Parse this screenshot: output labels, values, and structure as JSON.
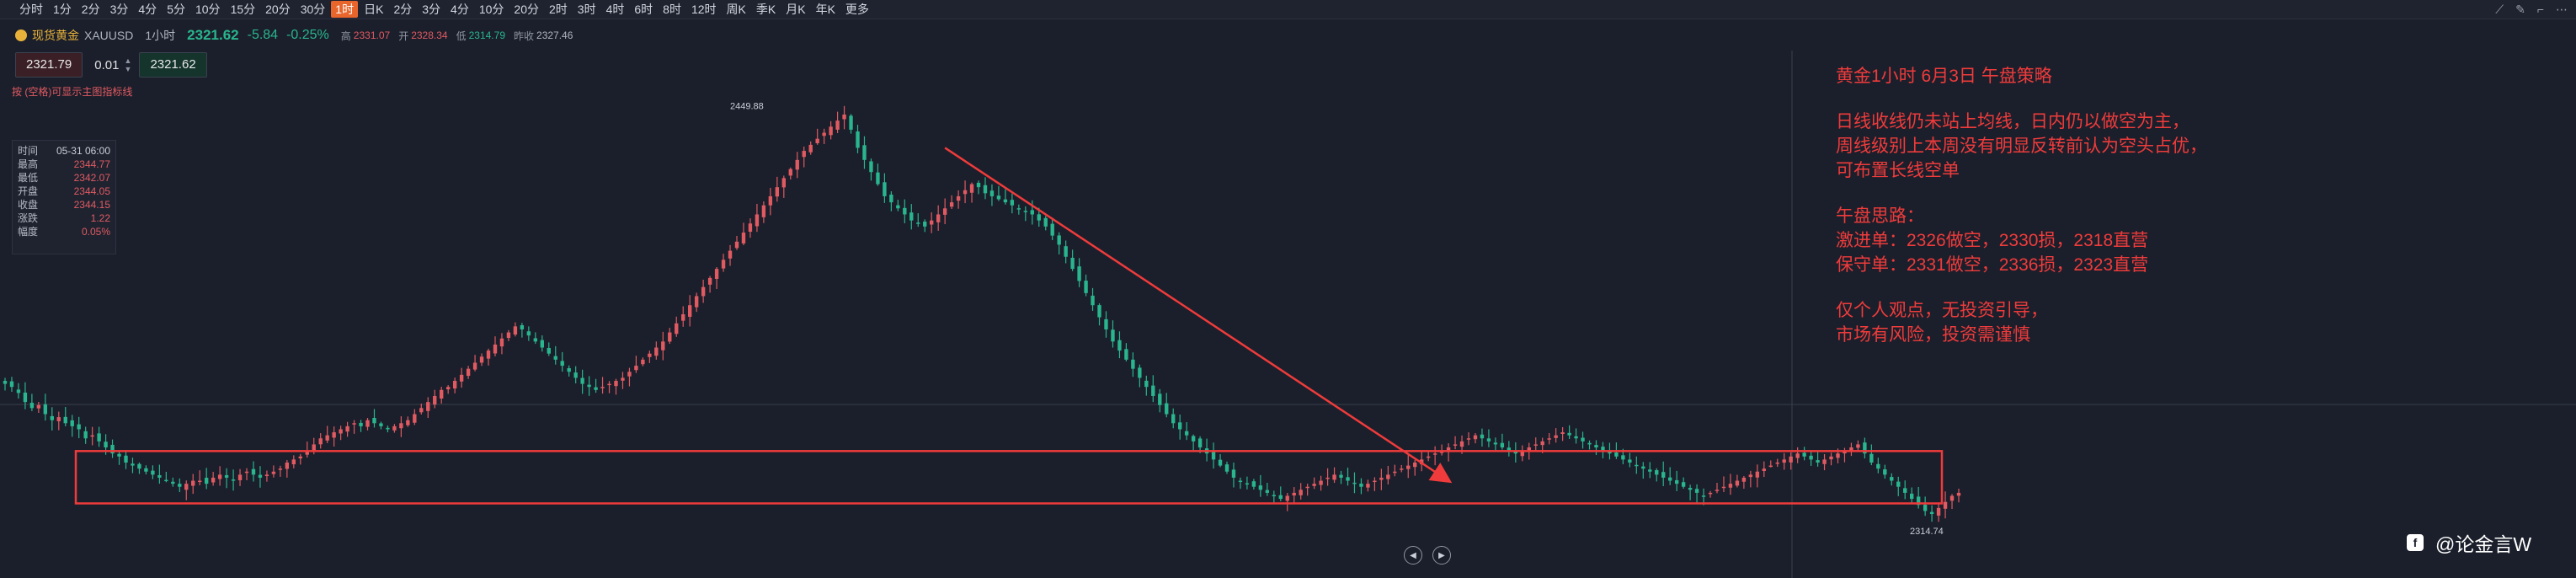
{
  "toolbar": {
    "timeframes": [
      "分时",
      "1分",
      "2分",
      "3分",
      "4分",
      "5分",
      "10分",
      "15分",
      "20分",
      "30分",
      "1时",
      "日K",
      "2分",
      "3分",
      "4分",
      "10分",
      "20分",
      "2时",
      "3时",
      "4时",
      "6时",
      "8时",
      "12时",
      "周K",
      "季K",
      "月K",
      "年K",
      "更多"
    ],
    "active_label": "1时",
    "icons": [
      "draw-line-icon",
      "brush-icon",
      "ruler-icon",
      "more-icon"
    ]
  },
  "symbol": {
    "name": "现货黄金",
    "code": "XAUUSD",
    "interval": "1小时",
    "last": "2321.62",
    "change": "-5.84",
    "change_pct": "-0.25%",
    "high_label": "高",
    "high": "2331.07",
    "open_label": "开",
    "open": "2328.34",
    "low_label": "低",
    "low": "2314.79",
    "prev_label": "昨收",
    "prev": "2327.46"
  },
  "trade": {
    "sell_price": "2321.79",
    "quantity": "0.01",
    "buy_price": "2321.62"
  },
  "hint": "按 (空格)可显示主图指标线",
  "infobox": {
    "rows": [
      {
        "k": "时间",
        "v": "05-31 06:00"
      },
      {
        "k": "最高",
        "v": "2344.77"
      },
      {
        "k": "最低",
        "v": "2342.07"
      },
      {
        "k": "开盘",
        "v": "2344.05"
      },
      {
        "k": "收盘",
        "v": "2344.15"
      },
      {
        "k": "涨跌",
        "v": "1.22"
      },
      {
        "k": "幅度",
        "v": "0.05%"
      }
    ]
  },
  "strategy": {
    "title": "黄金1小时 6月3日 午盘策略",
    "para1": [
      "日线收线仍未站上均线，日内仍以做空为主，",
      "周线级别上本周没有明显反转前认为空头占优，",
      "可布置长线空单"
    ],
    "para2": [
      "午盘思路：",
      "激进单：2326做空，2330损，2318直营",
      "保守单：2331做空，2336损，2323直营"
    ],
    "para3": [
      "仅个人观点，无投资引导，",
      "市场有风险，投资需谨慎"
    ]
  },
  "watermark": "@论金言W",
  "chart_data": {
    "type": "candlestick",
    "symbol": "XAUUSD",
    "interval": "1小时",
    "title": "",
    "xlabel": "",
    "ylabel": "",
    "ylim": [
      2305,
      2460
    ],
    "grid": false,
    "annotations": [
      {
        "type": "label",
        "text": "2449.88",
        "value": 2449.88
      },
      {
        "type": "label",
        "text": "2314.74",
        "value": 2314.74
      }
    ],
    "box_range": [
      2318.5,
      2335.8
    ],
    "arrow": {
      "from_index": 140,
      "from": 2436,
      "to_index": 215,
      "to": 2326
    },
    "close_series": [
      2358,
      2357,
      2355,
      2352,
      2350,
      2351,
      2348,
      2346,
      2347,
      2345,
      2344,
      2343,
      2340,
      2341,
      2339,
      2337,
      2335,
      2334,
      2332,
      2331,
      2330,
      2329,
      2328,
      2327,
      2326,
      2325,
      2324,
      2325,
      2326,
      2326,
      2325,
      2327,
      2328,
      2327,
      2326,
      2328,
      2329,
      2328,
      2327,
      2328,
      2329,
      2330,
      2332,
      2333,
      2334,
      2336,
      2338,
      2340,
      2341,
      2342,
      2343,
      2344,
      2345,
      2344,
      2346,
      2345,
      2344,
      2343,
      2344,
      2345,
      2346,
      2348,
      2350,
      2352,
      2354,
      2356,
      2357,
      2359,
      2361,
      2363,
      2365,
      2367,
      2369,
      2371,
      2373,
      2375,
      2377,
      2376,
      2374,
      2372,
      2370,
      2368,
      2366,
      2364,
      2362,
      2360,
      2358,
      2357,
      2356,
      2357,
      2358,
      2359,
      2360,
      2362,
      2364,
      2366,
      2368,
      2370,
      2372,
      2375,
      2378,
      2381,
      2384,
      2387,
      2390,
      2393,
      2396,
      2399,
      2402,
      2405,
      2408,
      2411,
      2414,
      2417,
      2420,
      2423,
      2426,
      2429,
      2432,
      2435,
      2437,
      2439,
      2441,
      2443,
      2445,
      2447,
      2442,
      2436,
      2432,
      2428,
      2424,
      2420,
      2418,
      2416,
      2414,
      2412,
      2411,
      2410,
      2412,
      2414,
      2416,
      2418,
      2420,
      2422,
      2424,
      2423,
      2421,
      2420,
      2419,
      2418,
      2417,
      2416,
      2415,
      2414,
      2412,
      2410,
      2407,
      2404,
      2400,
      2396,
      2392,
      2388,
      2384,
      2380,
      2376,
      2372,
      2369,
      2366,
      2363,
      2360,
      2357,
      2354,
      2351,
      2348,
      2345,
      2343,
      2341,
      2339,
      2337,
      2335,
      2333,
      2331,
      2329,
      2327,
      2326,
      2325,
      2324,
      2323,
      2322,
      2321,
      2320,
      2321,
      2322,
      2323,
      2324,
      2325,
      2326,
      2327,
      2328,
      2327,
      2326,
      2325,
      2324,
      2325,
      2326,
      2327,
      2328,
      2329,
      2330,
      2331,
      2332,
      2333,
      2334,
      2335,
      2336,
      2337,
      2338,
      2339,
      2340,
      2341,
      2340,
      2339,
      2338,
      2337,
      2336,
      2335,
      2336,
      2337,
      2338,
      2339,
      2340,
      2341,
      2342,
      2341,
      2340,
      2339,
      2338,
      2337,
      2336,
      2335,
      2334,
      2333,
      2332,
      2331,
      2330,
      2329,
      2328,
      2327,
      2326,
      2325,
      2324,
      2323,
      2322,
      2321,
      2322,
      2323,
      2324,
      2325,
      2326,
      2327,
      2328,
      2329,
      2330,
      2331,
      2332,
      2333,
      2334,
      2335,
      2334,
      2333,
      2332,
      2333,
      2334,
      2335,
      2336,
      2337,
      2338,
      2335,
      2332,
      2330,
      2328,
      2326,
      2324,
      2322,
      2320,
      2318,
      2316,
      2315,
      2317,
      2319,
      2321,
      2322
    ]
  }
}
